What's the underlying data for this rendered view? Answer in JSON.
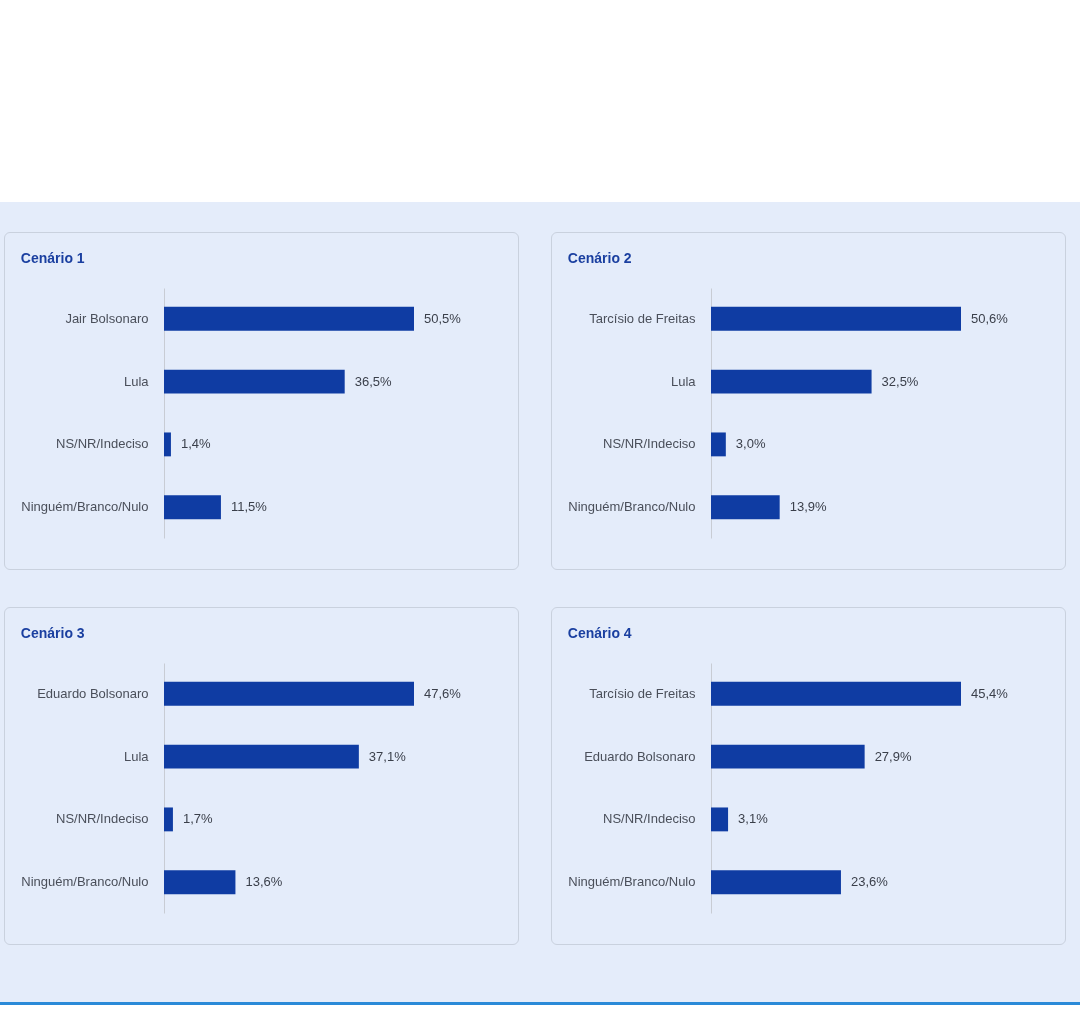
{
  "chart_data": [
    {
      "type": "bar",
      "orientation": "horizontal",
      "title": "Cenário 1",
      "categories": [
        "Jair Bolsonaro",
        "Lula",
        "NS/NR/Indeciso",
        "Ninguém/Branco/Nulo"
      ],
      "values": [
        50.5,
        36.5,
        1.4,
        11.5
      ],
      "value_labels": [
        "50,5%",
        "36,5%",
        "1,4%",
        "11,5%"
      ],
      "color": "#0f3ca3"
    },
    {
      "type": "bar",
      "orientation": "horizontal",
      "title": "Cenário 2",
      "categories": [
        "Tarcísio de Freitas",
        "Lula",
        "NS/NR/Indeciso",
        "Ninguém/Branco/Nulo"
      ],
      "values": [
        50.6,
        32.5,
        3.0,
        13.9
      ],
      "value_labels": [
        "50,6%",
        "32,5%",
        "3,0%",
        "13,9%"
      ],
      "color": "#0f3ca3"
    },
    {
      "type": "bar",
      "orientation": "horizontal",
      "title": "Cenário 3",
      "categories": [
        "Eduardo Bolsonaro",
        "Lula",
        "NS/NR/Indeciso",
        "Ninguém/Branco/Nulo"
      ],
      "values": [
        47.6,
        37.1,
        1.7,
        13.6
      ],
      "value_labels": [
        "47,6%",
        "37,1%",
        "1,7%",
        "13,6%"
      ],
      "color": "#0f3ca3"
    },
    {
      "type": "bar",
      "orientation": "horizontal",
      "title": "Cenário 4",
      "categories": [
        "Tarcísio de Freitas",
        "Eduardo Bolsonaro",
        "NS/NR/Indeciso",
        "Ninguém/Branco/Nulo"
      ],
      "values": [
        45.4,
        27.9,
        3.1,
        23.6
      ],
      "value_labels": [
        "45,4%",
        "27,9%",
        "3,1%",
        "23,6%"
      ],
      "color": "#0f3ca3"
    }
  ]
}
